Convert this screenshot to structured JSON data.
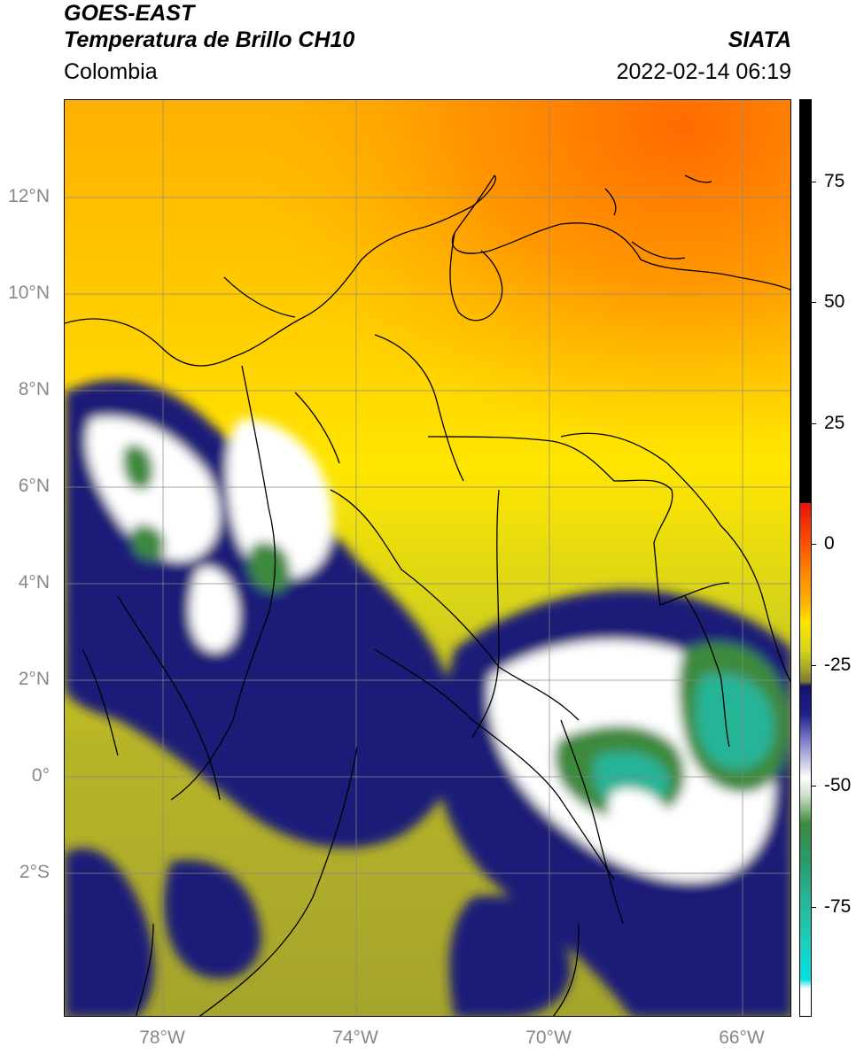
{
  "header": {
    "satellite": "GOES-EAST",
    "product": "Temperatura de Brillo CH10",
    "region": "Colombia",
    "agency": "SIATA",
    "datetime": "2022-02-14 06:19"
  },
  "map": {
    "lat_ticks": [
      "12°N",
      "10°N",
      "8°N",
      "6°N",
      "4°N",
      "2°N",
      "0°",
      "2°S"
    ],
    "lon_ticks": [
      "78°W",
      "74°W",
      "70°W",
      "66°W"
    ],
    "lat_range": [
      -4.5,
      14.0
    ],
    "lon_range": [
      -80.0,
      -65.0
    ]
  },
  "colorbar": {
    "ticks": [
      "75",
      "50",
      "25",
      "0",
      "-25",
      "-50",
      "-75"
    ],
    "range": [
      -95,
      90
    ],
    "colors": {
      "black": "#000000",
      "red": "#e8130a",
      "orange": "#ff8c00",
      "yellow": "#ffe600",
      "olive": "#a8a82a",
      "navy": "#14146e",
      "white": "#ffffff",
      "green": "#3c8a3c",
      "teal": "#26b496",
      "cyan": "#00e0e0"
    }
  }
}
